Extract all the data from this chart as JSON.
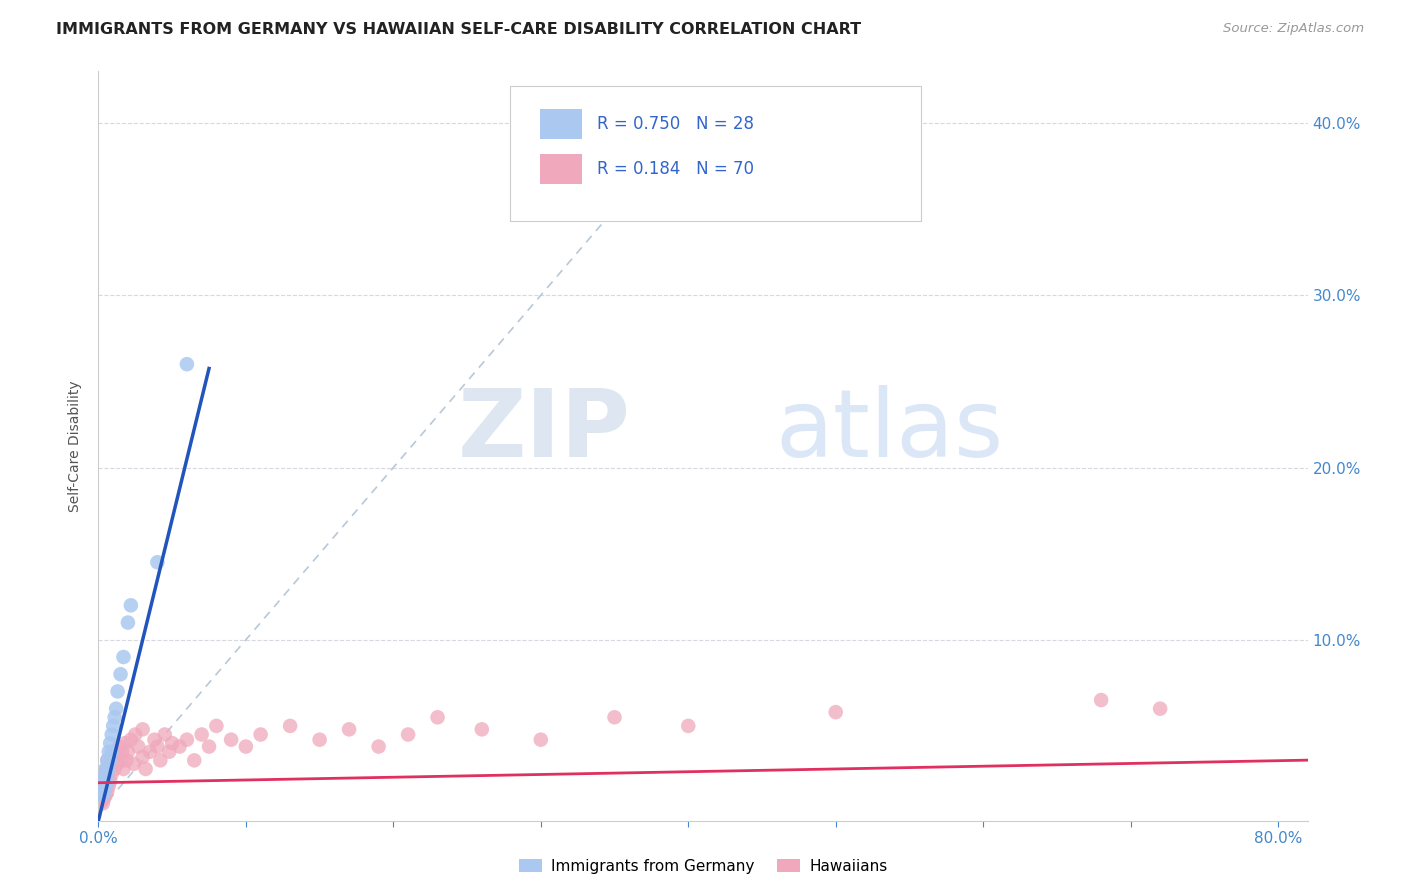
{
  "title": "IMMIGRANTS FROM GERMANY VS HAWAIIAN SELF-CARE DISABILITY CORRELATION CHART",
  "source": "Source: ZipAtlas.com",
  "ylabel": "Self-Care Disability",
  "xlim": [
    0.0,
    0.82
  ],
  "ylim": [
    -0.005,
    0.43
  ],
  "R_germany": 0.75,
  "N_germany": 28,
  "R_hawaiians": 0.184,
  "N_hawaiians": 70,
  "germany_color": "#aac8f0",
  "hawaiians_color": "#f0a8bc",
  "germany_line_color": "#2255bb",
  "hawaiians_line_color": "#e03060",
  "diagonal_color": "#b8c8d8",
  "watermark_zip": "ZIP",
  "watermark_atlas": "atlas",
  "background_color": "#ffffff",
  "germany_x": [
    0.001,
    0.002,
    0.002,
    0.003,
    0.003,
    0.004,
    0.004,
    0.005,
    0.005,
    0.005,
    0.006,
    0.006,
    0.007,
    0.007,
    0.008,
    0.008,
    0.009,
    0.009,
    0.01,
    0.011,
    0.012,
    0.013,
    0.015,
    0.017,
    0.02,
    0.022,
    0.04,
    0.06
  ],
  "germany_y": [
    0.01,
    0.012,
    0.015,
    0.01,
    0.018,
    0.012,
    0.02,
    0.015,
    0.022,
    0.025,
    0.018,
    0.03,
    0.025,
    0.035,
    0.03,
    0.04,
    0.035,
    0.045,
    0.05,
    0.055,
    0.06,
    0.07,
    0.08,
    0.09,
    0.11,
    0.12,
    0.145,
    0.26
  ],
  "hawaiians_x": [
    0.001,
    0.001,
    0.002,
    0.002,
    0.002,
    0.003,
    0.003,
    0.003,
    0.004,
    0.004,
    0.004,
    0.005,
    0.005,
    0.005,
    0.006,
    0.006,
    0.006,
    0.007,
    0.007,
    0.008,
    0.008,
    0.009,
    0.01,
    0.01,
    0.011,
    0.012,
    0.013,
    0.014,
    0.015,
    0.016,
    0.017,
    0.018,
    0.019,
    0.02,
    0.022,
    0.024,
    0.025,
    0.027,
    0.03,
    0.03,
    0.032,
    0.035,
    0.038,
    0.04,
    0.042,
    0.045,
    0.048,
    0.05,
    0.055,
    0.06,
    0.065,
    0.07,
    0.075,
    0.08,
    0.09,
    0.1,
    0.11,
    0.13,
    0.15,
    0.17,
    0.19,
    0.21,
    0.23,
    0.26,
    0.3,
    0.35,
    0.4,
    0.5,
    0.68,
    0.72
  ],
  "hawaiians_y": [
    0.008,
    0.012,
    0.006,
    0.01,
    0.015,
    0.005,
    0.012,
    0.02,
    0.008,
    0.015,
    0.022,
    0.01,
    0.018,
    0.025,
    0.012,
    0.02,
    0.03,
    0.015,
    0.025,
    0.018,
    0.028,
    0.022,
    0.03,
    0.035,
    0.025,
    0.032,
    0.028,
    0.038,
    0.03,
    0.035,
    0.025,
    0.04,
    0.03,
    0.035,
    0.042,
    0.028,
    0.045,
    0.038,
    0.032,
    0.048,
    0.025,
    0.035,
    0.042,
    0.038,
    0.03,
    0.045,
    0.035,
    0.04,
    0.038,
    0.042,
    0.03,
    0.045,
    0.038,
    0.05,
    0.042,
    0.038,
    0.045,
    0.05,
    0.042,
    0.048,
    0.038,
    0.045,
    0.055,
    0.048,
    0.042,
    0.055,
    0.05,
    0.058,
    0.065,
    0.06
  ]
}
